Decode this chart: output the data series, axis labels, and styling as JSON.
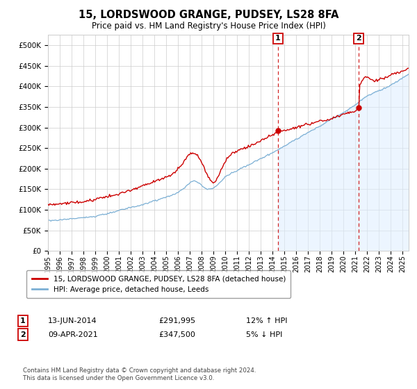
{
  "title": "15, LORDSWOOD GRANGE, PUDSEY, LS28 8FA",
  "subtitle": "Price paid vs. HM Land Registry's House Price Index (HPI)",
  "ytick_values": [
    0,
    50000,
    100000,
    150000,
    200000,
    250000,
    300000,
    350000,
    400000,
    450000,
    500000
  ],
  "xlim_start": 1995.0,
  "xlim_end": 2025.5,
  "ylim": [
    0,
    525000
  ],
  "xtick_years": [
    1995,
    1996,
    1997,
    1998,
    1999,
    2000,
    2001,
    2002,
    2003,
    2004,
    2005,
    2006,
    2007,
    2008,
    2009,
    2010,
    2011,
    2012,
    2013,
    2014,
    2015,
    2016,
    2017,
    2018,
    2019,
    2020,
    2021,
    2022,
    2023,
    2024,
    2025
  ],
  "sale1_x": 2014.45,
  "sale1_y": 291995,
  "sale2_x": 2021.27,
  "sale2_y": 347500,
  "red_line_color": "#cc0000",
  "blue_line_color": "#7bafd4",
  "blue_fill_color": "#ddeeff",
  "marker_box_color": "#cc0000",
  "grid_color": "#cccccc",
  "bg_color": "#ffffff",
  "legend_entry1": "15, LORDSWOOD GRANGE, PUDSEY, LS28 8FA (detached house)",
  "legend_entry2": "HPI: Average price, detached house, Leeds",
  "footnote": "Contains HM Land Registry data © Crown copyright and database right 2024.\nThis data is licensed under the Open Government Licence v3.0."
}
